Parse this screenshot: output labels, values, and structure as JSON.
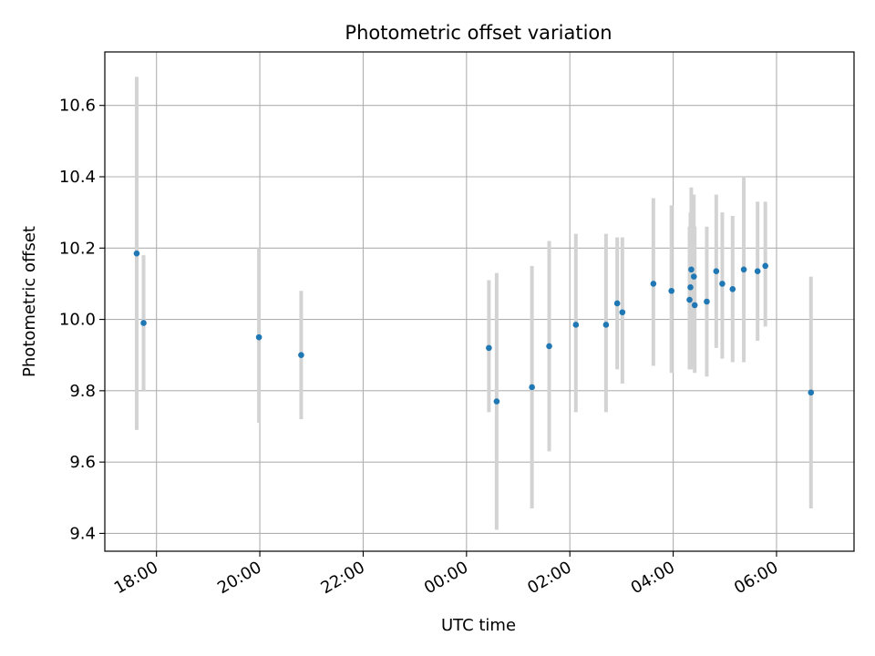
{
  "chart_data": {
    "type": "scatter",
    "title": "Photometric offset variation",
    "xlabel": "UTC time",
    "ylabel": "Photometric offset",
    "x_ticks": [
      "18:00",
      "20:00",
      "22:00",
      "00:00",
      "02:00",
      "04:00",
      "06:00"
    ],
    "y_ticks": [
      "9.4",
      "9.6",
      "9.8",
      "10.0",
      "10.2",
      "10.4",
      "10.6"
    ],
    "xlim": [
      "17:00",
      "07:30"
    ],
    "ylim": [
      9.35,
      10.75
    ],
    "grid": true,
    "marker_color": "#1f77b4",
    "errorbar_color": "#d3d3d3",
    "points": [
      {
        "time": "17:37",
        "y": 10.185,
        "low": 9.69,
        "high": 10.68
      },
      {
        "time": "17:45",
        "y": 9.99,
        "low": 9.8,
        "high": 10.18
      },
      {
        "time": "19:59",
        "y": 9.95,
        "low": 9.71,
        "high": 10.2
      },
      {
        "time": "20:48",
        "y": 9.9,
        "low": 9.72,
        "high": 10.08
      },
      {
        "time": "00:26",
        "y": 9.92,
        "low": 9.74,
        "high": 10.11
      },
      {
        "time": "00:35",
        "y": 9.77,
        "low": 9.41,
        "high": 10.13
      },
      {
        "time": "01:16",
        "y": 9.81,
        "low": 9.47,
        "high": 10.15
      },
      {
        "time": "01:36",
        "y": 9.925,
        "low": 9.63,
        "high": 10.22
      },
      {
        "time": "02:07",
        "y": 9.985,
        "low": 9.74,
        "high": 10.24
      },
      {
        "time": "02:42",
        "y": 9.985,
        "low": 9.74,
        "high": 10.24
      },
      {
        "time": "02:55",
        "y": 10.045,
        "low": 9.86,
        "high": 10.23
      },
      {
        "time": "03:01",
        "y": 10.02,
        "low": 9.82,
        "high": 10.23
      },
      {
        "time": "03:37",
        "y": 10.1,
        "low": 9.87,
        "high": 10.34
      },
      {
        "time": "03:58",
        "y": 10.08,
        "low": 9.85,
        "high": 10.32
      },
      {
        "time": "04:19",
        "y": 10.055,
        "low": 9.86,
        "high": 10.26
      },
      {
        "time": "04:20",
        "y": 10.09,
        "low": 9.86,
        "high": 10.3
      },
      {
        "time": "04:21",
        "y": 10.14,
        "low": 9.86,
        "high": 10.37
      },
      {
        "time": "04:24",
        "y": 10.12,
        "low": 9.88,
        "high": 10.35
      },
      {
        "time": "04:25",
        "y": 10.04,
        "low": 9.85,
        "high": 10.26
      },
      {
        "time": "04:39",
        "y": 10.05,
        "low": 9.84,
        "high": 10.26
      },
      {
        "time": "04:50",
        "y": 10.135,
        "low": 9.92,
        "high": 10.35
      },
      {
        "time": "04:57",
        "y": 10.1,
        "low": 9.89,
        "high": 10.3
      },
      {
        "time": "05:09",
        "y": 10.085,
        "low": 9.88,
        "high": 10.29
      },
      {
        "time": "05:22",
        "y": 10.14,
        "low": 9.88,
        "high": 10.4
      },
      {
        "time": "05:38",
        "y": 10.135,
        "low": 9.94,
        "high": 10.33
      },
      {
        "time": "05:47",
        "y": 10.15,
        "low": 9.98,
        "high": 10.33
      },
      {
        "time": "06:40",
        "y": 9.795,
        "low": 9.47,
        "high": 10.12
      }
    ]
  }
}
